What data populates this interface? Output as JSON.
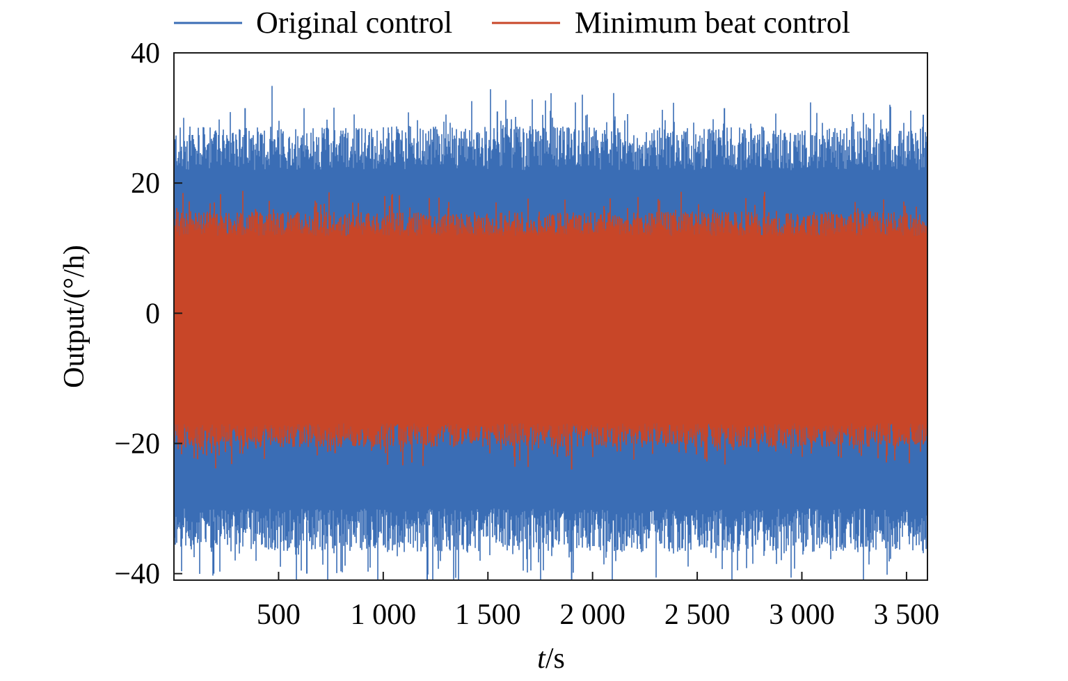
{
  "chart_data": {
    "type": "line",
    "title": "",
    "xlabel_italic": "t",
    "xlabel_rest": "/s",
    "ylabel": "Output/(°/h)",
    "xlim": [
      0,
      3600
    ],
    "ylim": [
      -41,
      40
    ],
    "x_ticks": [
      500,
      1000,
      1500,
      2000,
      2500,
      3000,
      3500
    ],
    "x_tick_labels": [
      "500",
      "1 000",
      "1 500",
      "2 000",
      "2 500",
      "3 000",
      "3 500"
    ],
    "y_ticks": [
      -40,
      -20,
      0,
      20,
      40
    ],
    "y_tick_labels": [
      "−40",
      "−20",
      "0",
      "20",
      "40"
    ],
    "grid": false,
    "legend_position": "top",
    "series": [
      {
        "name": "Original control",
        "color": "#3A6DB5",
        "band_upper_typical": 24,
        "band_lower_typical": -32,
        "peaks": [
          {
            "x": 340,
            "y": 31.5
          },
          {
            "x": 1545,
            "y": 31
          },
          {
            "x": 2630,
            "y": 31.5
          },
          {
            "x": 3580,
            "y": 30.5
          },
          {
            "x": 1210,
            "y": -41
          },
          {
            "x": 1900,
            "y": -41
          },
          {
            "x": 635,
            "y": -40
          },
          {
            "x": 190,
            "y": -40
          }
        ]
      },
      {
        "name": "Minimum beat control",
        "color": "#C84628",
        "band_upper_typical": 13,
        "band_lower_typical": -18,
        "peaks": [
          {
            "x": 1030,
            "y": 16.5
          },
          {
            "x": 390,
            "y": 16
          },
          {
            "x": 1900,
            "y": -24
          },
          {
            "x": 770,
            "y": -21.5
          },
          {
            "x": 180,
            "y": -21.5
          },
          {
            "x": 2350,
            "y": -20.5
          }
        ]
      }
    ]
  }
}
